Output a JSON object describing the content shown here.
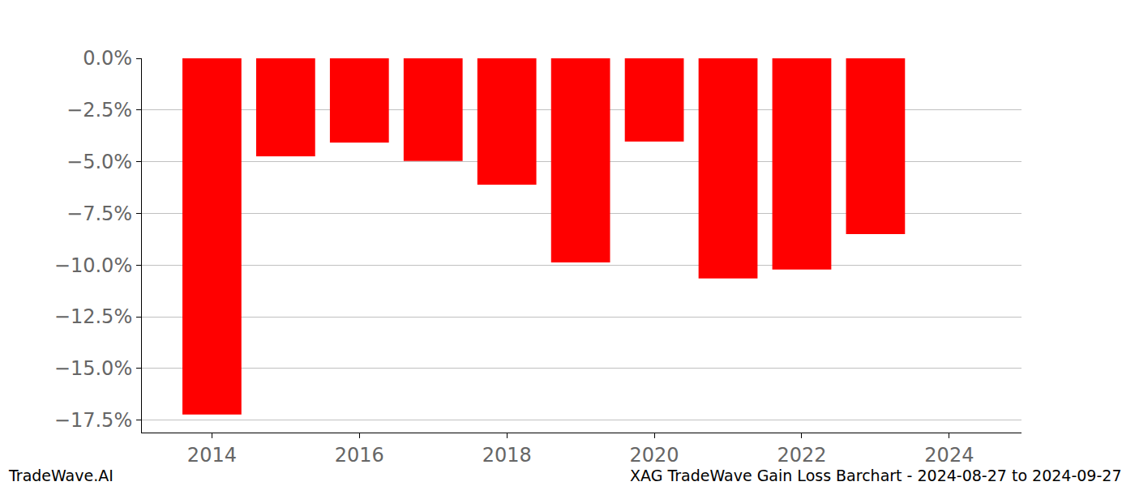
{
  "chart_data": {
    "type": "bar",
    "title": "XAG TradeWave Gain Loss Barchart - 2024-08-27 to 2024-09-27",
    "source": "TradeWave.AI",
    "x": [
      2014,
      2015,
      2016,
      2017,
      2018,
      2019,
      2020,
      2021,
      2022,
      2023
    ],
    "values": [
      -17.23,
      -4.74,
      -4.07,
      -4.97,
      -6.11,
      -9.87,
      -4.03,
      -10.65,
      -10.22,
      -8.5
    ],
    "color": "#ff0000",
    "xlim": [
      2013.05,
      2024.98
    ],
    "xticks": [
      2014,
      2016,
      2018,
      2020,
      2022,
      2024
    ],
    "ylim": [
      -18.1,
      0
    ],
    "yticks": [
      {
        "value": 0,
        "label": "0.0%"
      },
      {
        "value": -2.5,
        "label": "−2.5%"
      },
      {
        "value": -5,
        "label": "−5.0%"
      },
      {
        "value": -7.5,
        "label": "−7.5%"
      },
      {
        "value": -10,
        "label": "−10.0%"
      },
      {
        "value": -12.5,
        "label": "−12.5%"
      },
      {
        "value": -15,
        "label": "−15.0%"
      },
      {
        "value": -17.5,
        "label": "−17.5%"
      }
    ],
    "grid": true
  }
}
